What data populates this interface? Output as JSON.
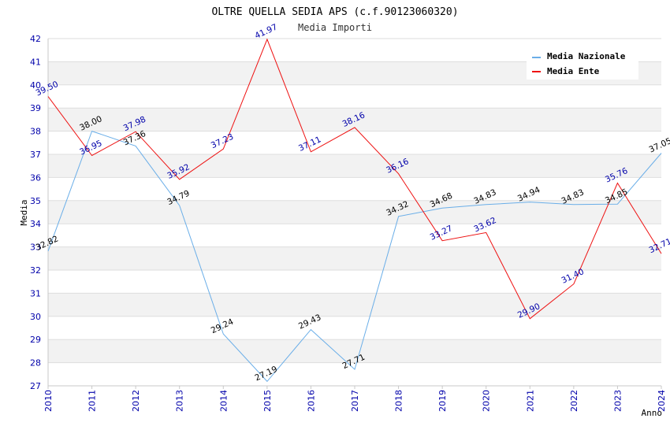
{
  "chart_data": {
    "type": "line",
    "title": "OLTRE QUELLA SEDIA APS (c.f.90123060320)",
    "subtitle": "Media Importi",
    "xlabel": "Anno",
    "ylabel": "Media",
    "ylim": [
      27,
      42
    ],
    "yticks": [
      "27",
      "28",
      "29",
      "30",
      "31",
      "32",
      "33",
      "34",
      "35",
      "36",
      "37",
      "38",
      "39",
      "40",
      "41",
      "42"
    ],
    "categories": [
      "2010",
      "2011",
      "2012",
      "2013",
      "2014",
      "2015",
      "2016",
      "2017",
      "2018",
      "2019",
      "2020",
      "2021",
      "2022",
      "2023",
      "2024"
    ],
    "legend_position": "top-right",
    "grid": "horizontal alternating bands",
    "series": [
      {
        "name": "Media Nazionale",
        "color": "#6aaee8",
        "values": [
          32.82,
          38.0,
          37.36,
          34.79,
          29.24,
          27.19,
          29.43,
          27.71,
          34.32,
          34.68,
          34.83,
          34.94,
          34.83,
          34.85,
          37.05
        ],
        "labels": [
          "32.82",
          "38.00",
          "37.36",
          "34.79",
          "29.24",
          "27.19",
          "29.43",
          "27.71",
          "34.32",
          "34.68",
          "34.83",
          "34.94",
          "34.83",
          "34.85",
          "37.05"
        ]
      },
      {
        "name": "Media Ente",
        "color": "#ee1111",
        "values": [
          39.5,
          36.95,
          37.98,
          35.92,
          37.23,
          41.97,
          37.11,
          38.16,
          36.16,
          33.27,
          33.62,
          29.9,
          31.4,
          35.76,
          32.71
        ],
        "labels": [
          "39.50",
          "36.95",
          "37.98",
          "35.92",
          "37.23",
          "41.97",
          "37.11",
          "38.16",
          "36.16",
          "33.27",
          "33.62",
          "29.90",
          "31.40",
          "35.76",
          "32.71"
        ]
      }
    ]
  }
}
